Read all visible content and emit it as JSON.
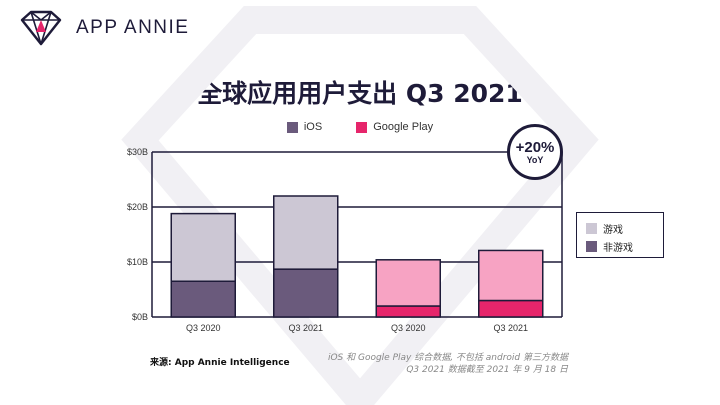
{
  "brand": {
    "name": "APP ANNIE"
  },
  "chart_data": {
    "type": "bar",
    "stacked": true,
    "title": "全球应用用户支出 Q3 2021",
    "categories": [
      "Q3 2020",
      "Q3 2021",
      "Q3 2020",
      "Q3 2021"
    ],
    "groups": [
      "iOS",
      "iOS",
      "Google Play",
      "Google Play"
    ],
    "series": [
      {
        "name": "非游戏",
        "values": [
          6.5,
          8.7,
          2.0,
          3.0
        ],
        "colors": [
          "#6a5a7c",
          "#6a5a7c",
          "#e6256b",
          "#e6256b"
        ]
      },
      {
        "name": "游戏",
        "values": [
          12.3,
          13.3,
          8.4,
          9.1
        ],
        "colors": [
          "#ccc7d4",
          "#ccc7d4",
          "#f7a3c3",
          "#f7a3c3"
        ]
      }
    ],
    "yticks": [
      "$0B",
      "$10B",
      "$20B",
      "$30B"
    ],
    "ylim": [
      0,
      30
    ],
    "grid": true,
    "legend_platform": [
      {
        "label": "iOS",
        "color": "#6a5a7c"
      },
      {
        "label": "Google Play",
        "color": "#e6256b"
      }
    ],
    "legend_segment": [
      {
        "label": "游戏",
        "color": "#ccc7d4"
      },
      {
        "label": "非游戏",
        "color": "#6a5a7c"
      }
    ],
    "yoy": {
      "value": "+20%",
      "label": "YoY"
    },
    "source": "来源: App Annie Intelligence",
    "notes": [
      "iOS 和 Google Play 综合数据, 不包括 android 第三方数据",
      "Q3 2021 数据截至 2021 年 9 月 18 日"
    ]
  }
}
